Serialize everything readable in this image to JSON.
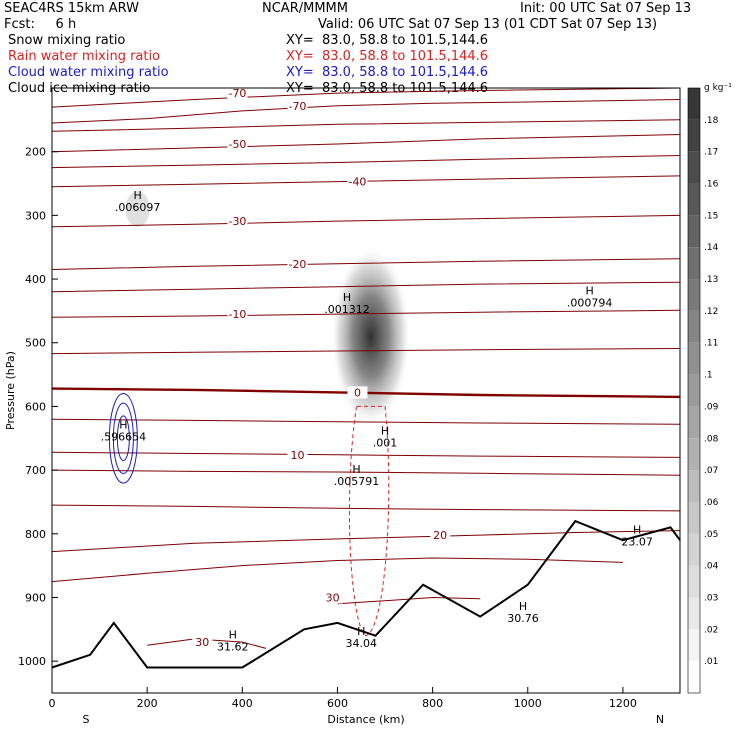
{
  "header": {
    "model": "SEAC4RS 15km ARW",
    "org": "NCAR/MMMM",
    "init": "Init: 00 UTC Sat 07 Sep 13",
    "fcst": "Fcst:     6 h",
    "valid": "Valid: 06 UTC Sat 07 Sep 13 (01 CDT Sat 07 Sep 13)",
    "fields": [
      {
        "name": "Snow mixing ratio",
        "xy": "XY=  83.0, 58.8 to 101.5,144.6",
        "color": "#000000"
      },
      {
        "name": "Rain water mixing ratio",
        "xy": "XY=  83.0, 58.8 to 101.5,144.6",
        "color": "#e02020"
      },
      {
        "name": "Cloud water mixing ratio",
        "xy": "XY=  83.0, 58.8 to 101.5,144.6",
        "color": "#1a1acc"
      },
      {
        "name": "Cloud ice mixing ratio",
        "xy": "XY=  83.0, 58.8 to 101.5,144.6",
        "color": "#000000"
      }
    ]
  },
  "chart_data": {
    "type": "contour",
    "xlabel": "Distance (km)",
    "ylabel": "Pressure (hPa)",
    "xlim": [
      0,
      1320
    ],
    "ylim": [
      1050,
      100
    ],
    "x_ticks": [
      0,
      200,
      400,
      600,
      800,
      1000,
      1200
    ],
    "y_ticks": [
      200,
      300,
      400,
      500,
      600,
      700,
      800,
      900,
      1000
    ],
    "y_tick_labels": [
      "200",
      "300",
      "400",
      "500",
      "600",
      "700",
      "800",
      "900",
      "1000"
    ],
    "left_end_label": "S",
    "right_end_label": "N",
    "colorbar": {
      "unit": "g kg⁻¹",
      "levels": [
        0.01,
        0.02,
        0.03,
        0.04,
        0.05,
        0.06,
        0.07,
        0.08,
        0.09,
        0.1,
        0.11,
        0.12,
        0.13,
        0.14,
        0.15,
        0.16,
        0.17,
        0.18
      ],
      "labels": [
        ".01",
        ".02",
        ".03",
        ".04",
        ".05",
        ".06",
        ".07",
        ".08",
        ".09",
        ".1",
        ".11",
        ".12",
        ".13",
        ".14",
        ".15",
        ".16",
        ".17",
        ".18"
      ]
    },
    "temperature_contours": [
      {
        "label": "-70",
        "points": [
          [
            0,
            130
          ],
          [
            300,
            118
          ],
          [
            600,
            108
          ],
          [
            900,
            104
          ],
          [
            1320,
            100
          ]
        ]
      },
      {
        "label": "-70",
        "points": [
          [
            0,
            155
          ],
          [
            200,
            148
          ],
          [
            400,
            136
          ],
          [
            600,
            128
          ],
          [
            800,
            124
          ],
          [
            1000,
            122
          ],
          [
            1320,
            118
          ]
        ]
      },
      {
        "label": "",
        "points": [
          [
            0,
            168
          ],
          [
            300,
            163
          ],
          [
            600,
            157
          ],
          [
            900,
            154
          ],
          [
            1320,
            150
          ]
        ]
      },
      {
        "label": "-50",
        "points": [
          [
            0,
            200
          ],
          [
            300,
            194
          ],
          [
            600,
            188
          ],
          [
            900,
            180
          ],
          [
            1320,
            173
          ]
        ]
      },
      {
        "label": "",
        "points": [
          [
            0,
            225
          ],
          [
            300,
            221
          ],
          [
            600,
            217
          ],
          [
            900,
            212
          ],
          [
            1320,
            206
          ]
        ]
      },
      {
        "label": "-40",
        "points": [
          [
            0,
            255
          ],
          [
            300,
            251
          ],
          [
            600,
            247
          ],
          [
            900,
            243
          ],
          [
            1320,
            238
          ]
        ]
      },
      {
        "label": "-30",
        "points": [
          [
            0,
            318
          ],
          [
            300,
            314
          ],
          [
            600,
            309
          ],
          [
            900,
            305
          ],
          [
            1320,
            300
          ]
        ]
      },
      {
        "label": "-20",
        "points": [
          [
            0,
            385
          ],
          [
            300,
            380
          ],
          [
            600,
            376
          ],
          [
            900,
            372
          ],
          [
            1320,
            368
          ]
        ]
      },
      {
        "label": "",
        "points": [
          [
            0,
            420
          ],
          [
            300,
            416
          ],
          [
            600,
            412
          ],
          [
            900,
            408
          ],
          [
            1320,
            405
          ]
        ]
      },
      {
        "label": "-10",
        "points": [
          [
            0,
            460
          ],
          [
            300,
            458
          ],
          [
            600,
            455
          ],
          [
            900,
            452
          ],
          [
            1320,
            449
          ]
        ]
      },
      {
        "label": "",
        "points": [
          [
            0,
            517
          ],
          [
            300,
            515
          ],
          [
            600,
            513
          ],
          [
            900,
            511
          ],
          [
            1320,
            509
          ]
        ]
      },
      {
        "label": "0",
        "points": [
          [
            0,
            572
          ],
          [
            300,
            574
          ],
          [
            600,
            578
          ],
          [
            900,
            582
          ],
          [
            1320,
            585
          ]
        ]
      },
      {
        "label": "",
        "points": [
          [
            0,
            620
          ],
          [
            300,
            622
          ],
          [
            600,
            624
          ],
          [
            900,
            626
          ],
          [
            1320,
            628
          ]
        ]
      },
      {
        "label": "10",
        "points": [
          [
            0,
            672
          ],
          [
            300,
            674
          ],
          [
            600,
            676
          ],
          [
            900,
            678
          ],
          [
            1320,
            680
          ]
        ]
      },
      {
        "label": "",
        "points": [
          [
            0,
            700
          ],
          [
            300,
            702
          ],
          [
            600,
            703
          ],
          [
            900,
            705
          ],
          [
            1320,
            708
          ]
        ]
      },
      {
        "label": "",
        "points": [
          [
            0,
            755
          ],
          [
            300,
            757
          ],
          [
            600,
            760
          ],
          [
            900,
            762
          ],
          [
            1320,
            764
          ]
        ]
      },
      {
        "label": "20",
        "points": [
          [
            0,
            828
          ],
          [
            300,
            815
          ],
          [
            600,
            808
          ],
          [
            900,
            802
          ],
          [
            1100,
            798
          ],
          [
            1320,
            795
          ]
        ]
      },
      {
        "label": "",
        "points": [
          [
            0,
            875
          ],
          [
            200,
            862
          ],
          [
            400,
            850
          ],
          [
            600,
            842
          ],
          [
            800,
            838
          ],
          [
            1000,
            840
          ],
          [
            1200,
            845
          ]
        ]
      },
      {
        "label": "30",
        "points": [
          [
            600,
            910
          ],
          [
            700,
            905
          ],
          [
            800,
            900
          ],
          [
            900,
            902
          ]
        ]
      },
      {
        "label": "30",
        "points": [
          [
            200,
            975
          ],
          [
            300,
            965
          ],
          [
            400,
            970
          ],
          [
            450,
            980
          ]
        ]
      }
    ],
    "terrain": [
      [
        0,
        1010
      ],
      [
        80,
        990
      ],
      [
        130,
        940
      ],
      [
        200,
        1010
      ],
      [
        400,
        1010
      ],
      [
        530,
        950
      ],
      [
        600,
        940
      ],
      [
        680,
        960
      ],
      [
        780,
        880
      ],
      [
        900,
        930
      ],
      [
        1000,
        880
      ],
      [
        1100,
        780
      ],
      [
        1200,
        810
      ],
      [
        1300,
        790
      ],
      [
        1320,
        810
      ]
    ],
    "maxima_labels": [
      {
        "text": ".006097",
        "x": 180,
        "y": 290
      },
      {
        "text": ".001312",
        "x": 620,
        "y": 450
      },
      {
        "text": ".000794",
        "x": 1130,
        "y": 440
      },
      {
        "text": ".596654",
        "x": 150,
        "y": 650
      },
      {
        "text": ".005791",
        "x": 640,
        "y": 720
      },
      {
        "text": ".001",
        "x": 700,
        "y": 660
      },
      {
        "text": "34.04",
        "x": 650,
        "y": 975
      },
      {
        "text": "31.62",
        "x": 380,
        "y": 980
      },
      {
        "text": "30.76",
        "x": 990,
        "y": 935
      },
      {
        "text": "23.07",
        "x": 1230,
        "y": 815
      }
    ],
    "shaded_core": {
      "x": 670,
      "p": 490,
      "max": 0.18
    }
  }
}
